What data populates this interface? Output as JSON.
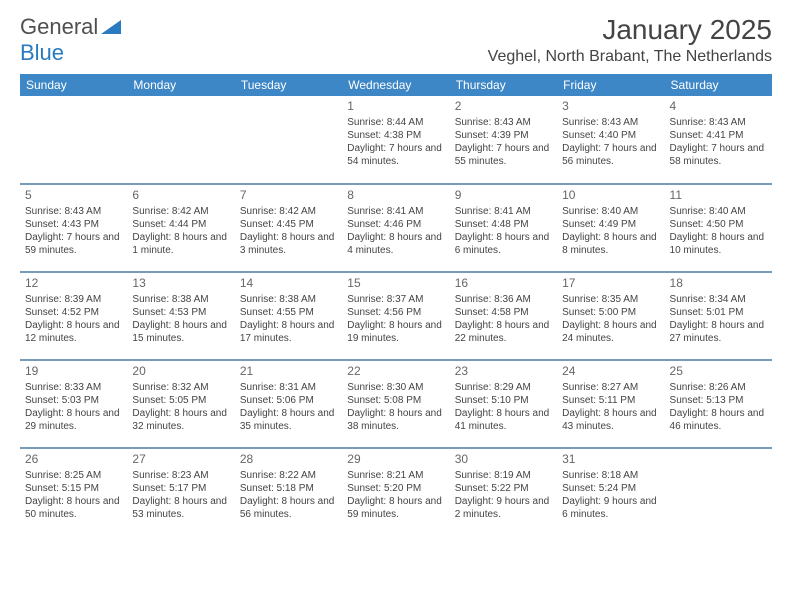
{
  "brand": {
    "name1": "General",
    "name2": "Blue",
    "triangle_color": "#2a7abf"
  },
  "title": "January 2025",
  "location": "Veghel, North Brabant, The Netherlands",
  "theme": {
    "header_bg": "#3d87c7",
    "header_fg": "#ffffff",
    "separator": "#7a9bb8",
    "text": "#444444",
    "daynum": "#666666",
    "page_bg": "#ffffff",
    "title_fontsize": 28,
    "location_fontsize": 16,
    "dayhdr_fontsize": 12,
    "cell_fontsize": 10
  },
  "day_headers": [
    "Sunday",
    "Monday",
    "Tuesday",
    "Wednesday",
    "Thursday",
    "Friday",
    "Saturday"
  ],
  "weeks": [
    [
      null,
      null,
      null,
      {
        "n": "1",
        "sr": "8:44 AM",
        "ss": "4:38 PM",
        "dl": "7 hours and 54 minutes."
      },
      {
        "n": "2",
        "sr": "8:43 AM",
        "ss": "4:39 PM",
        "dl": "7 hours and 55 minutes."
      },
      {
        "n": "3",
        "sr": "8:43 AM",
        "ss": "4:40 PM",
        "dl": "7 hours and 56 minutes."
      },
      {
        "n": "4",
        "sr": "8:43 AM",
        "ss": "4:41 PM",
        "dl": "7 hours and 58 minutes."
      }
    ],
    [
      {
        "n": "5",
        "sr": "8:43 AM",
        "ss": "4:43 PM",
        "dl": "7 hours and 59 minutes."
      },
      {
        "n": "6",
        "sr": "8:42 AM",
        "ss": "4:44 PM",
        "dl": "8 hours and 1 minute."
      },
      {
        "n": "7",
        "sr": "8:42 AM",
        "ss": "4:45 PM",
        "dl": "8 hours and 3 minutes."
      },
      {
        "n": "8",
        "sr": "8:41 AM",
        "ss": "4:46 PM",
        "dl": "8 hours and 4 minutes."
      },
      {
        "n": "9",
        "sr": "8:41 AM",
        "ss": "4:48 PM",
        "dl": "8 hours and 6 minutes."
      },
      {
        "n": "10",
        "sr": "8:40 AM",
        "ss": "4:49 PM",
        "dl": "8 hours and 8 minutes."
      },
      {
        "n": "11",
        "sr": "8:40 AM",
        "ss": "4:50 PM",
        "dl": "8 hours and 10 minutes."
      }
    ],
    [
      {
        "n": "12",
        "sr": "8:39 AM",
        "ss": "4:52 PM",
        "dl": "8 hours and 12 minutes."
      },
      {
        "n": "13",
        "sr": "8:38 AM",
        "ss": "4:53 PM",
        "dl": "8 hours and 15 minutes."
      },
      {
        "n": "14",
        "sr": "8:38 AM",
        "ss": "4:55 PM",
        "dl": "8 hours and 17 minutes."
      },
      {
        "n": "15",
        "sr": "8:37 AM",
        "ss": "4:56 PM",
        "dl": "8 hours and 19 minutes."
      },
      {
        "n": "16",
        "sr": "8:36 AM",
        "ss": "4:58 PM",
        "dl": "8 hours and 22 minutes."
      },
      {
        "n": "17",
        "sr": "8:35 AM",
        "ss": "5:00 PM",
        "dl": "8 hours and 24 minutes."
      },
      {
        "n": "18",
        "sr": "8:34 AM",
        "ss": "5:01 PM",
        "dl": "8 hours and 27 minutes."
      }
    ],
    [
      {
        "n": "19",
        "sr": "8:33 AM",
        "ss": "5:03 PM",
        "dl": "8 hours and 29 minutes."
      },
      {
        "n": "20",
        "sr": "8:32 AM",
        "ss": "5:05 PM",
        "dl": "8 hours and 32 minutes."
      },
      {
        "n": "21",
        "sr": "8:31 AM",
        "ss": "5:06 PM",
        "dl": "8 hours and 35 minutes."
      },
      {
        "n": "22",
        "sr": "8:30 AM",
        "ss": "5:08 PM",
        "dl": "8 hours and 38 minutes."
      },
      {
        "n": "23",
        "sr": "8:29 AM",
        "ss": "5:10 PM",
        "dl": "8 hours and 41 minutes."
      },
      {
        "n": "24",
        "sr": "8:27 AM",
        "ss": "5:11 PM",
        "dl": "8 hours and 43 minutes."
      },
      {
        "n": "25",
        "sr": "8:26 AM",
        "ss": "5:13 PM",
        "dl": "8 hours and 46 minutes."
      }
    ],
    [
      {
        "n": "26",
        "sr": "8:25 AM",
        "ss": "5:15 PM",
        "dl": "8 hours and 50 minutes."
      },
      {
        "n": "27",
        "sr": "8:23 AM",
        "ss": "5:17 PM",
        "dl": "8 hours and 53 minutes."
      },
      {
        "n": "28",
        "sr": "8:22 AM",
        "ss": "5:18 PM",
        "dl": "8 hours and 56 minutes."
      },
      {
        "n": "29",
        "sr": "8:21 AM",
        "ss": "5:20 PM",
        "dl": "8 hours and 59 minutes."
      },
      {
        "n": "30",
        "sr": "8:19 AM",
        "ss": "5:22 PM",
        "dl": "9 hours and 2 minutes."
      },
      {
        "n": "31",
        "sr": "8:18 AM",
        "ss": "5:24 PM",
        "dl": "9 hours and 6 minutes."
      },
      null
    ]
  ],
  "labels": {
    "sunrise": "Sunrise:",
    "sunset": "Sunset:",
    "daylight": "Daylight:"
  }
}
